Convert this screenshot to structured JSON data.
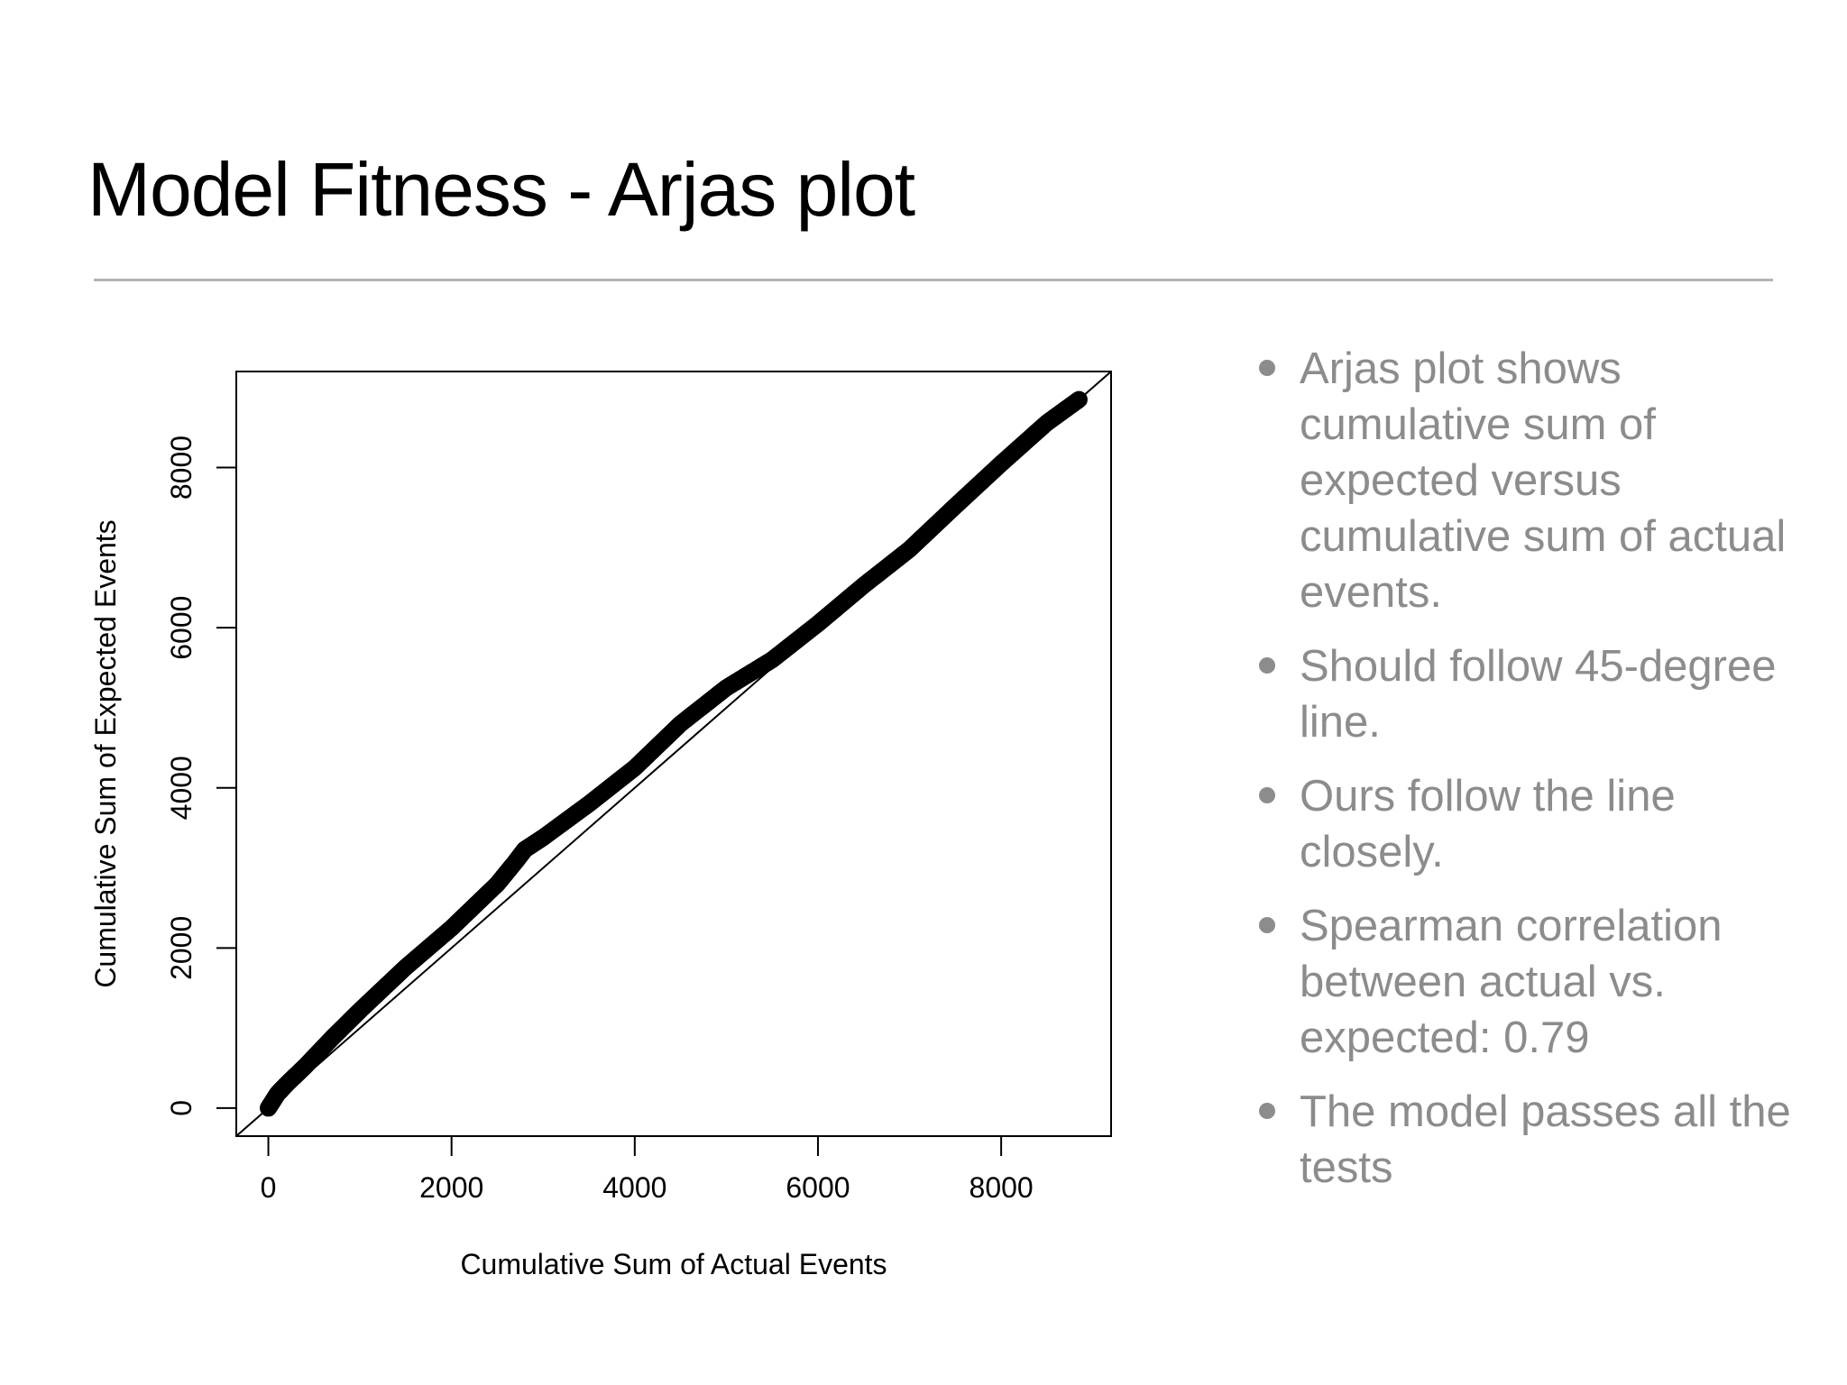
{
  "slide": {
    "title": "Model Fitness - Arjas plot"
  },
  "bullets": [
    "Arjas plot shows cumulative sum of expected versus cumulative sum of actual events.",
    "Should follow 45-degree line.",
    "Ours follow the line closely.",
    "Spearman correlation between actual vs. expected: 0.79",
    "The model passes all the tests"
  ],
  "chart_data": {
    "type": "scatter",
    "title": "",
    "xlabel": "Cumulative Sum of Actual Events",
    "ylabel": "Cumulative Sum of Expected Events",
    "xlim": [
      -350,
      9200
    ],
    "ylim": [
      -350,
      9200
    ],
    "x_ticks": [
      0,
      2000,
      4000,
      6000,
      8000
    ],
    "y_ticks": [
      0,
      2000,
      4000,
      6000,
      8000
    ],
    "x_tick_labels": [
      "0",
      "2000",
      "4000",
      "6000",
      "8000"
    ],
    "y_tick_labels": [
      "0",
      "2000",
      "4000",
      "6000",
      "8000"
    ],
    "grid": false,
    "reference_line": {
      "slope": 1,
      "intercept": 0
    },
    "series": [
      {
        "marker": "open-circle",
        "color": "#000000",
        "x": [
          0,
          100,
          200,
          400,
          700,
          1000,
          1500,
          2000,
          2500,
          2700,
          2800,
          3000,
          3500,
          4000,
          4500,
          5000,
          5500,
          6000,
          6500,
          7000,
          7500,
          8000,
          8500,
          8850
        ],
        "y": [
          0,
          180,
          300,
          520,
          880,
          1220,
          1760,
          2250,
          2800,
          3080,
          3230,
          3380,
          3800,
          4250,
          4800,
          5250,
          5600,
          6050,
          6530,
          6980,
          7520,
          8050,
          8560,
          8850
        ]
      }
    ]
  }
}
